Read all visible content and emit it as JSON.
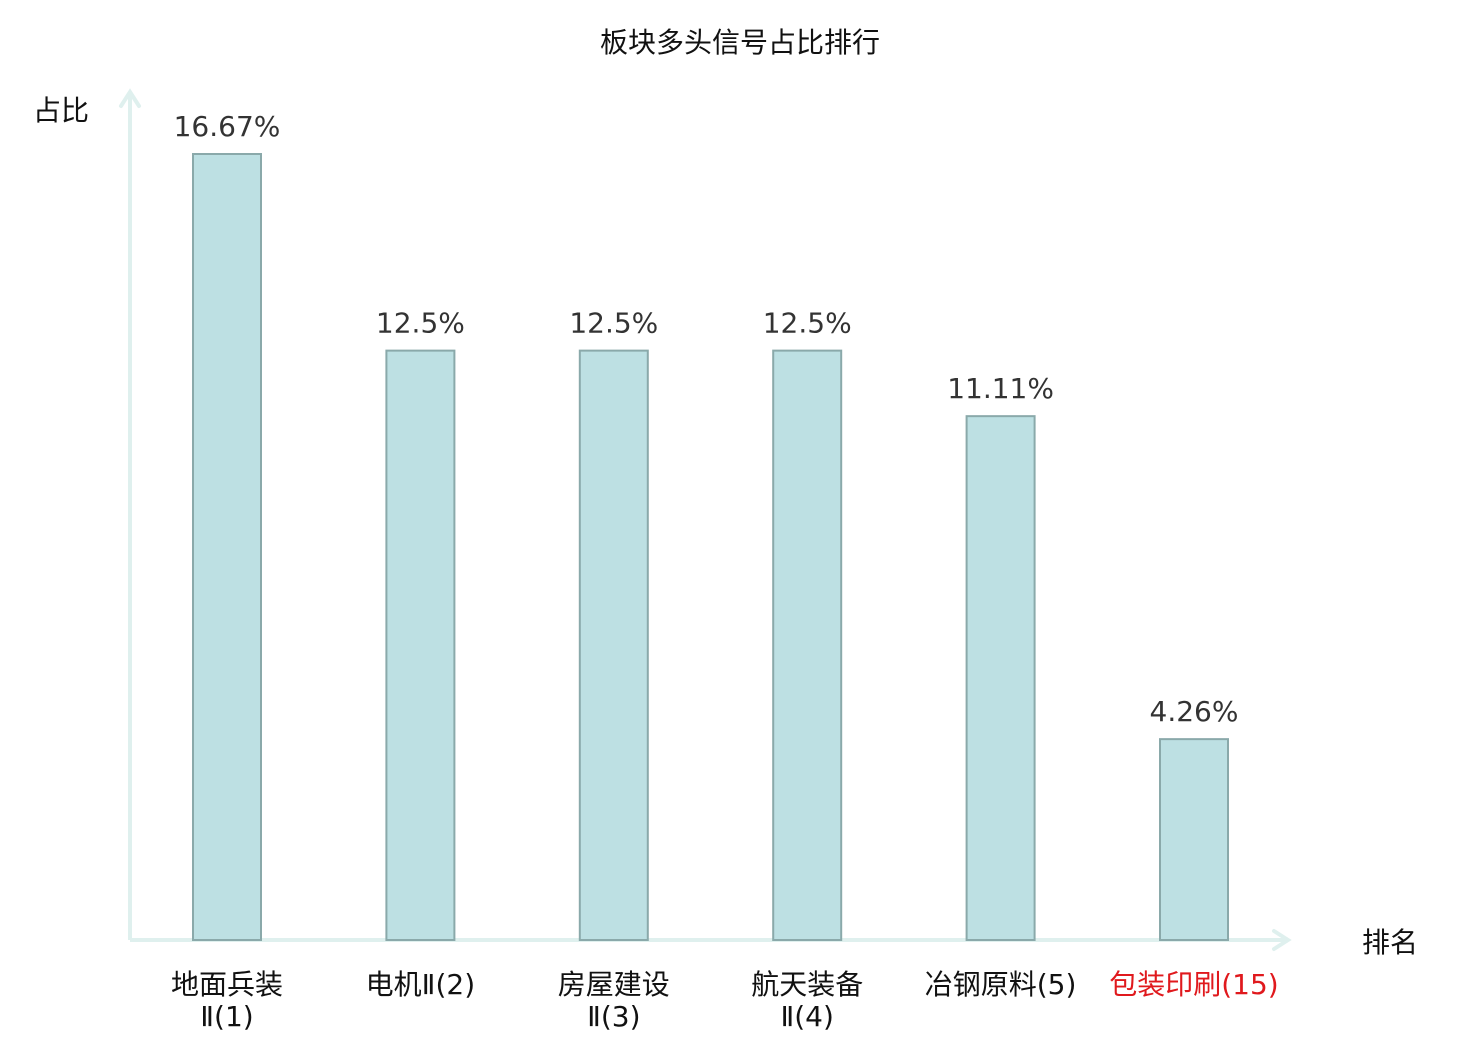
{
  "chart_data": {
    "type": "bar",
    "title": "板块多头信号占比排行",
    "ylabel": "占比",
    "xlabel": "排名",
    "categories": [
      {
        "line1": "地面兵装",
        "line2": "Ⅱ(1)"
      },
      {
        "line1": "电机Ⅱ(2)",
        "line2": ""
      },
      {
        "line1": "房屋建设",
        "line2": "Ⅱ(3)"
      },
      {
        "line1": "航天装备",
        "line2": "Ⅱ(4)"
      },
      {
        "line1": "冶钢原料(5)",
        "line2": ""
      },
      {
        "line1": "包装印刷(15)",
        "line2": ""
      }
    ],
    "values": [
      16.67,
      12.5,
      12.5,
      12.5,
      11.11,
      4.26
    ],
    "value_labels": [
      "16.67%",
      "12.5%",
      "12.5%",
      "12.5%",
      "11.11%",
      "4.26%"
    ],
    "highlight_index": 5,
    "ylim": [
      0,
      16.67
    ],
    "grid": false,
    "colors": {
      "bar_fill": "#bde0e3",
      "bar_stroke": "#8aa9aa",
      "axis": "#dff0ee",
      "label": "#111111",
      "value_label": "#333333",
      "highlight": "#e0191d"
    }
  }
}
